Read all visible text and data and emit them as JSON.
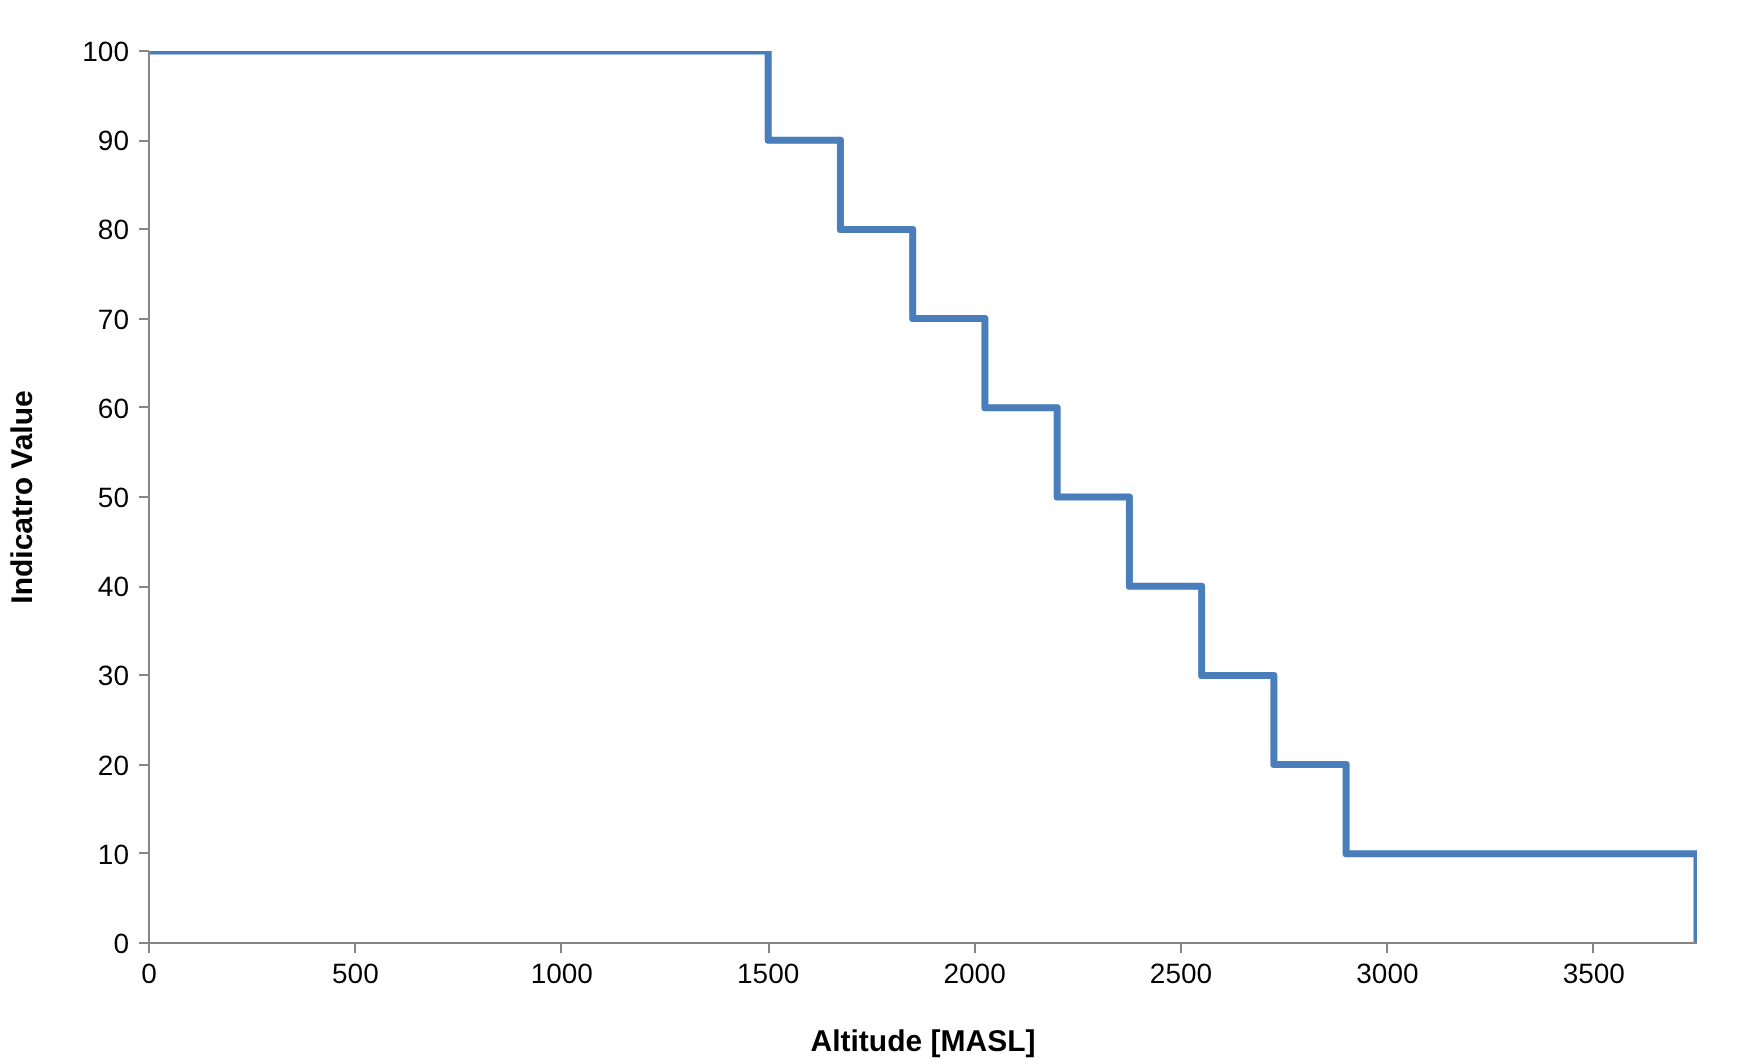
{
  "chart_data": {
    "type": "step",
    "xlabel": "Altitude [MASL]",
    "ylabel": "Indicatro Value",
    "x": [
      0,
      1500,
      1675,
      1850,
      2025,
      2200,
      2375,
      2550,
      2725,
      2900,
      3750
    ],
    "series": [
      {
        "color": "#4a7ebb",
        "values": [
          100,
          90,
          80,
          70,
          60,
          50,
          40,
          30,
          20,
          10,
          0
        ]
      }
    ],
    "xlim": [
      0,
      3750
    ],
    "xticks": [
      0,
      500,
      1000,
      1500,
      2000,
      2500,
      3000,
      3500
    ],
    "ylim": [
      0,
      100
    ],
    "yticks": [
      0,
      10,
      20,
      30,
      40,
      50,
      60,
      70,
      80,
      90,
      100
    ],
    "grid": false,
    "marker": "none",
    "line_style": "solid"
  }
}
